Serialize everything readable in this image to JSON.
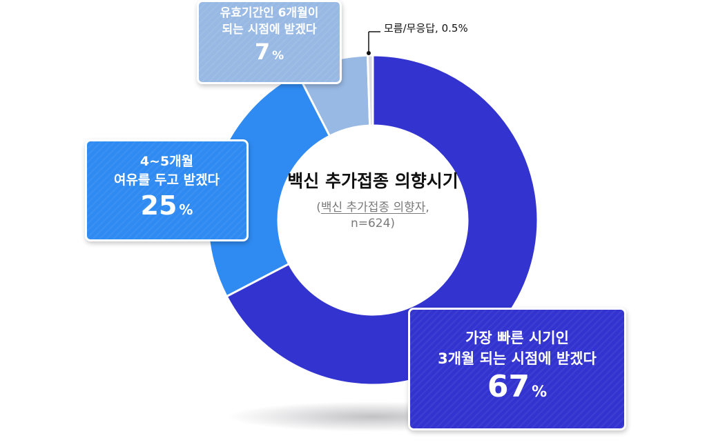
{
  "chart_data": {
    "type": "pie",
    "donut": true,
    "title": "백신 추가접종 의향시기",
    "subtitle_underlined": "백신 추가접종 의향자",
    "subtitle_rest": "n=624)",
    "unit": "%",
    "slices": [
      {
        "label_lines": [
          "가장 빠른 시기인",
          "3개월 되는 시점에 받겠다"
        ],
        "value": 67,
        "color": "#3334d0"
      },
      {
        "label_lines": [
          "4~5개월",
          "여유를 두고 받겠다"
        ],
        "value": 25,
        "color": "#2f8bf2"
      },
      {
        "label_lines": [
          "유효기간인 6개월이",
          "되는 시점에 받겠다"
        ],
        "value": 7,
        "color": "#98b9e4"
      },
      {
        "label": "모름/무응답",
        "value": 0.5,
        "display": "모름/무응답, 0.5%",
        "color": "#d8dadf"
      }
    ]
  }
}
